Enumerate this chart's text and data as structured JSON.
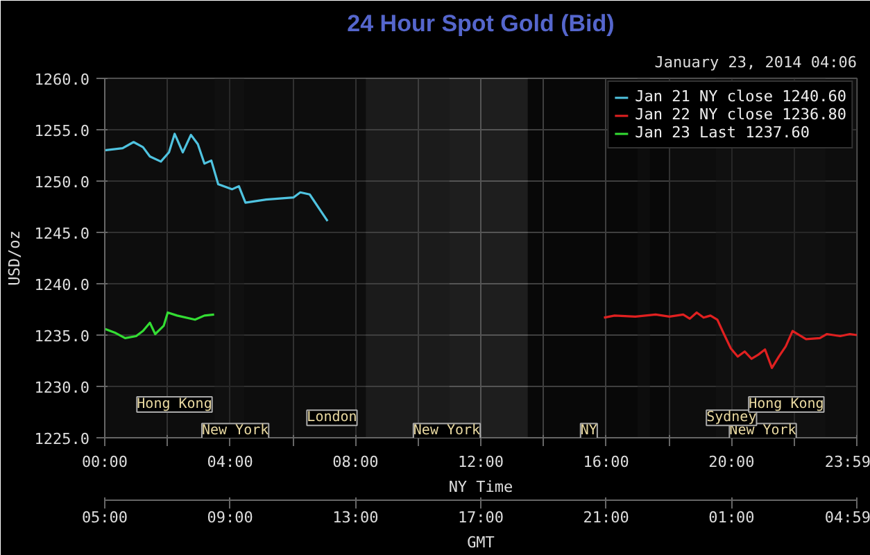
{
  "chart_data": {
    "type": "line",
    "title": "24 Hour Spot Gold (Bid)",
    "subtitle": "January 23, 2014 04:06",
    "ylabel": "USD/oz",
    "xlabel": "NY Time",
    "x2label": "GMT",
    "xlim": [
      0,
      24
    ],
    "ylim": [
      1225,
      1260
    ],
    "xticks": [
      {
        "value": 0,
        "label": "00:00"
      },
      {
        "value": 2,
        "label": null
      },
      {
        "value": 4,
        "label": "04:00"
      },
      {
        "value": 6,
        "label": null
      },
      {
        "value": 8,
        "label": "08:00"
      },
      {
        "value": 10,
        "label": null
      },
      {
        "value": 12,
        "label": "12:00"
      },
      {
        "value": 14,
        "label": null
      },
      {
        "value": 16,
        "label": "16:00"
      },
      {
        "value": 18,
        "label": null
      },
      {
        "value": 20,
        "label": "20:00"
      },
      {
        "value": 22,
        "label": null
      },
      {
        "value": 23.983,
        "label": "23:59"
      }
    ],
    "x2lim": [
      "2014-01-22T05:00",
      "2014-01-23T05:00"
    ],
    "x2ticks": [
      {
        "value": "2014-01-22T05:00",
        "label": "05:00"
      },
      {
        "value": "2014-01-22T09:00",
        "label": "09:00"
      },
      {
        "value": "2014-01-22T13:00",
        "label": "13:00"
      },
      {
        "value": "2014-01-22T17:00",
        "label": "17:00"
      },
      {
        "value": "2014-01-22T21:00",
        "label": "21:00"
      },
      {
        "value": "2014-01-23T01:00",
        "label": "01:00"
      },
      {
        "value": "2014-01-23T04:59",
        "label": "04:59"
      }
    ],
    "yticks": [
      {
        "value": 1225,
        "label": "1225.0"
      },
      {
        "value": 1230,
        "label": "1230.0"
      },
      {
        "value": 1235,
        "label": "1235.0"
      },
      {
        "value": 1240,
        "label": "1240.0"
      },
      {
        "value": 1245,
        "label": "1245.0"
      },
      {
        "value": 1250,
        "label": "1250.0"
      },
      {
        "value": 1255,
        "label": "1255.0"
      },
      {
        "value": 1260,
        "label": "1260.0"
      }
    ],
    "grid": true,
    "legend": "top right",
    "bands": [
      {
        "axis": "x",
        "from": 0,
        "to": 8.33,
        "label": "New York",
        "color": "#161616"
      },
      {
        "axis": "x",
        "from": 8.33,
        "to": 13.5,
        "label": "New York",
        "color": "#555555"
      },
      {
        "axis": "x",
        "from": 13.5,
        "to": 17.4,
        "label": "NY",
        "color": "#161616"
      },
      {
        "axis": "x",
        "from": 18.0,
        "to": 24,
        "label": "New York",
        "color": "#161616"
      },
      {
        "axis": "x",
        "from": 3.5,
        "to": 11.0,
        "label": "London",
        "color": "#161616"
      },
      {
        "axis": "x",
        "from": 17.0,
        "to": 23.0,
        "label": "Sydney",
        "color": "#161616"
      },
      {
        "axis": "x",
        "from": 0,
        "to": 4.45,
        "label": "Hong Kong",
        "color": "#161616"
      },
      {
        "axis": "x",
        "from": 19.5,
        "to": 24,
        "label": "Hong Kong",
        "color": "#161616"
      }
    ],
    "series": [
      {
        "name": "Jan 21 NY close 1240.60",
        "color": "#4fc3e0",
        "x": [
          0,
          0.57,
          0.92,
          1.22,
          1.44,
          1.79,
          2.05,
          2.23,
          2.49,
          2.75,
          2.97,
          3.18,
          3.4,
          3.62,
          4.06,
          4.28,
          4.49,
          5.15,
          6.02,
          6.24,
          6.54,
          6.89,
          7.11
        ],
        "values": [
          1253.0,
          1253.2,
          1253.8,
          1253.3,
          1252.4,
          1251.9,
          1252.8,
          1254.6,
          1252.8,
          1254.5,
          1253.6,
          1251.7,
          1252.0,
          1249.7,
          1249.2,
          1249.5,
          1247.9,
          1248.2,
          1248.4,
          1248.9,
          1248.7,
          1247.1,
          1246.1
        ]
      },
      {
        "name": "Jan 22 NY close 1236.80",
        "color": "#e02020",
        "x": [
          15.93,
          16.27,
          16.93,
          17.58,
          18.02,
          18.46,
          18.67,
          18.89,
          19.11,
          19.33,
          19.55,
          19.76,
          19.98,
          20.2,
          20.42,
          20.64,
          20.86,
          21.07,
          21.29,
          21.51,
          21.73,
          21.95,
          22.38,
          22.82,
          23.04,
          23.47,
          23.78,
          24.0
        ],
        "values": [
          1236.7,
          1236.9,
          1236.8,
          1237.0,
          1236.8,
          1237.0,
          1236.6,
          1237.2,
          1236.7,
          1236.9,
          1236.5,
          1235.1,
          1233.7,
          1232.9,
          1233.4,
          1232.7,
          1233.1,
          1233.6,
          1231.8,
          1232.9,
          1233.9,
          1235.4,
          1234.6,
          1234.7,
          1235.1,
          1234.9,
          1235.1,
          1235.0
        ]
      },
      {
        "name": "Jan 23 Last 1237.60",
        "color": "#33dd33",
        "x": [
          0,
          0.35,
          0.65,
          1.0,
          1.22,
          1.44,
          1.61,
          1.88,
          2.01,
          2.31,
          2.88,
          3.18,
          3.49
        ],
        "values": [
          1235.6,
          1235.2,
          1234.7,
          1234.9,
          1235.4,
          1236.2,
          1235.1,
          1235.9,
          1237.2,
          1236.9,
          1236.5,
          1236.9,
          1237.0
        ]
      }
    ]
  }
}
